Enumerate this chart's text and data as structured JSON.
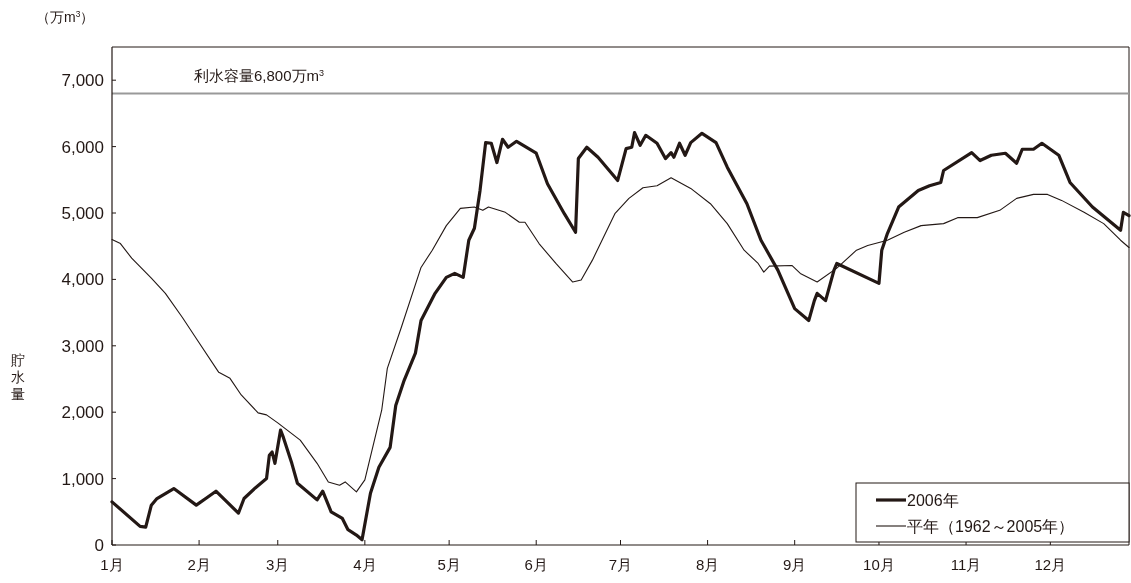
{
  "chart_data": {
    "type": "line",
    "ylabel": "貯水量",
    "annotations": [
      "（万m$^{3}$）"
    ],
    "xlim": [
      "2006-01-01",
      "2006-12-29"
    ],
    "xticks": [
      {
        "value": "2006-01-01",
        "label": "1月"
      },
      {
        "value": "2006-02-01",
        "label": "2月"
      },
      {
        "value": "2006-03-01",
        "label": "3月"
      },
      {
        "value": "2006-04-01",
        "label": "4月"
      },
      {
        "value": "2006-05-01",
        "label": "5月"
      },
      {
        "value": "2006-06-01",
        "label": "6月"
      },
      {
        "value": "2006-07-01",
        "label": "7月"
      },
      {
        "value": "2006-08-01",
        "label": "8月"
      },
      {
        "value": "2006-09-01",
        "label": "9月"
      },
      {
        "value": "2006-10-01",
        "label": "10月"
      },
      {
        "value": "2006-11-01",
        "label": "11月"
      },
      {
        "value": "2006-12-01",
        "label": "12月"
      }
    ],
    "ylim": [
      0,
      7500
    ],
    "yticks": [
      0,
      {
        "value": 1000,
        "label": "1,000"
      },
      {
        "value": 2000,
        "label": "2,000"
      },
      {
        "value": 3000,
        "label": "3,000"
      },
      {
        "value": 4000,
        "label": "4,000"
      },
      {
        "value": 5000,
        "label": "5,000"
      },
      {
        "value": 6000,
        "label": "6,000"
      },
      {
        "value": 7000,
        "label": "7,000"
      }
    ],
    "ref_lines": [
      {
        "axis": "y",
        "value": 6800,
        "label": "利水容量6,800万m$^{3}$",
        "color": "#999999"
      }
    ],
    "legend": "bottom right",
    "grid": false,
    "marker": "none",
    "series": [
      {
        "name": "2006年",
        "color": "#231815",
        "x": [
          "2006-01-01",
          "2006-01-11",
          "2006-01-13",
          "2006-01-15",
          "2006-01-17",
          "2006-01-23",
          "2006-01-31",
          "2006-02-04",
          "2006-02-06",
          "2006-02-07",
          "2006-02-15",
          "2006-02-17",
          "2006-02-21",
          "2006-02-25",
          "2006-02-26",
          "2006-02-27",
          "2006-02-28",
          "2006-03-02",
          "2006-03-03",
          "2006-03-06",
          "2006-03-08",
          "2006-03-15",
          "2006-03-17",
          "2006-03-20",
          "2006-03-24",
          "2006-03-26",
          "2006-03-29",
          "2006-03-31",
          "2006-04-03",
          "2006-04-06",
          "2006-04-10",
          "2006-04-12",
          "2006-04-15",
          "2006-04-19",
          "2006-04-21",
          "2006-04-26",
          "2006-04-30",
          "2006-05-03",
          "2006-05-06",
          "2006-05-08",
          "2006-05-10",
          "2006-05-12",
          "2006-05-14",
          "2006-05-16",
          "2006-05-18",
          "2006-05-20",
          "2006-05-22",
          "2006-05-25",
          "2006-06-01",
          "2006-06-05",
          "2006-06-11",
          "2006-06-15",
          "2006-06-16",
          "2006-06-19",
          "2006-06-23",
          "2006-06-30",
          "2006-07-03",
          "2006-07-05",
          "2006-07-06",
          "2006-07-08",
          "2006-07-10",
          "2006-07-14",
          "2006-07-17",
          "2006-07-19",
          "2006-07-20",
          "2006-07-22",
          "2006-07-24",
          "2006-07-26",
          "2006-07-30",
          "2006-08-04",
          "2006-08-08",
          "2006-08-15",
          "2006-08-20",
          "2006-08-26",
          "2006-09-01",
          "2006-09-06",
          "2006-09-08",
          "2006-09-09",
          "2006-09-12",
          "2006-09-15",
          "2006-09-16",
          "2006-10-01",
          "2006-10-02",
          "2006-10-04",
          "2006-10-08",
          "2006-10-15",
          "2006-10-19",
          "2006-10-23",
          "2006-10-24",
          "2006-11-03",
          "2006-11-06",
          "2006-11-10",
          "2006-11-15",
          "2006-11-19",
          "2006-11-21",
          "2006-11-25",
          "2006-11-28",
          "2006-12-04",
          "2006-12-08",
          "2006-12-16",
          "2006-12-26",
          "2006-12-27",
          "2006-12-29"
        ],
        "values": [
          650,
          280,
          270,
          600,
          700,
          850,
          600,
          720,
          780,
          810,
          480,
          700,
          860,
          1000,
          1350,
          1400,
          1230,
          1730,
          1620,
          1230,
          930,
          680,
          810,
          500,
          400,
          230,
          150,
          80,
          780,
          1170,
          1470,
          2100,
          2480,
          2890,
          3380,
          3790,
          4030,
          4090,
          4030,
          4590,
          4770,
          5340,
          6060,
          6050,
          5760,
          6110,
          5990,
          6080,
          5900,
          5440,
          4990,
          4710,
          5820,
          5990,
          5840,
          5490,
          5970,
          5990,
          6210,
          6020,
          6170,
          6050,
          5820,
          5910,
          5840,
          6050,
          5870,
          6060,
          6200,
          6060,
          5690,
          5140,
          4590,
          4140,
          3560,
          3380,
          3680,
          3790,
          3680,
          4140,
          4240,
          3940,
          4440,
          4690,
          5090,
          5340,
          5410,
          5460,
          5640,
          5910,
          5790,
          5870,
          5900,
          5750,
          5960,
          5960,
          6050,
          5870,
          5460,
          5090,
          4740,
          5010,
          4960
        ]
      },
      {
        "name": "平年（1962～2005年）",
        "color": "#231815",
        "x": [
          "2006-01-01",
          "2006-01-04",
          "2006-01-08",
          "2006-01-15",
          "2006-01-20",
          "2006-01-26",
          "2006-01-31",
          "2006-02-08",
          "2006-02-12",
          "2006-02-16",
          "2006-02-22",
          "2006-02-25",
          "2006-03-01",
          "2006-03-09",
          "2006-03-15",
          "2006-03-19",
          "2006-03-23",
          "2006-03-25",
          "2006-03-29",
          "2006-04-01",
          "2006-04-07",
          "2006-04-09",
          "2006-04-14",
          "2006-04-21",
          "2006-04-25",
          "2006-04-30",
          "2006-05-05",
          "2006-05-10",
          "2006-05-13",
          "2006-05-15",
          "2006-05-21",
          "2006-05-26",
          "2006-05-28",
          "2006-06-02",
          "2006-06-08",
          "2006-06-14",
          "2006-06-17",
          "2006-06-21",
          "2006-06-29",
          "2006-07-04",
          "2006-07-09",
          "2006-07-14",
          "2006-07-19",
          "2006-07-26",
          "2006-08-02",
          "2006-08-08",
          "2006-08-14",
          "2006-08-19",
          "2006-08-21",
          "2006-08-23",
          "2006-08-31",
          "2006-09-03",
          "2006-09-09",
          "2006-09-16",
          "2006-09-23",
          "2006-09-27",
          "2006-10-04",
          "2006-10-10",
          "2006-10-16",
          "2006-10-24",
          "2006-10-29",
          "2006-11-05",
          "2006-11-13",
          "2006-11-19",
          "2006-11-25",
          "2006-11-30",
          "2006-12-05",
          "2006-12-13",
          "2006-12-20",
          "2006-12-26",
          "2006-12-29"
        ],
        "values": [
          4600,
          4540,
          4320,
          4020,
          3790,
          3430,
          3110,
          2600,
          2510,
          2260,
          1990,
          1960,
          1840,
          1580,
          1230,
          950,
          900,
          950,
          800,
          980,
          2030,
          2660,
          3280,
          4180,
          4440,
          4810,
          5070,
          5090,
          5040,
          5090,
          5010,
          4860,
          4860,
          4540,
          4240,
          3960,
          3990,
          4290,
          4990,
          5220,
          5380,
          5410,
          5530,
          5370,
          5140,
          4840,
          4440,
          4240,
          4110,
          4200,
          4210,
          4090,
          3960,
          4170,
          4440,
          4510,
          4590,
          4710,
          4810,
          4840,
          4930,
          4930,
          5040,
          5220,
          5280,
          5280,
          5190,
          5010,
          4840,
          4590,
          4480
        ]
      }
    ]
  }
}
